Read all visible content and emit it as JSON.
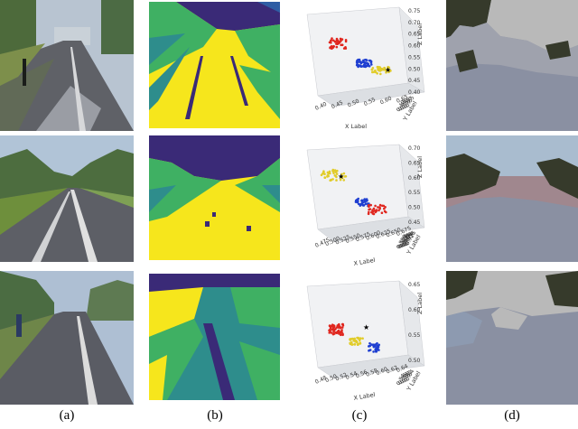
{
  "figure": {
    "captions": [
      "(a)",
      "(b)",
      "(c)",
      "(d)"
    ]
  },
  "colors": {
    "road_gray": "#5f6167",
    "sky": "#b6c3d2",
    "tree_green": "#3f6a30",
    "grass": "#6d8f3c",
    "cluster_yellow": "#f6e61c",
    "cluster_green": "#3fb063",
    "cluster_teal": "#2e8d8c",
    "cluster_navy": "#3a2a77",
    "cluster_blue": "#2f5da4",
    "seg_dark": "#363a2b",
    "seg_light": "#b9b9b9",
    "seg_road": "#8a90a2",
    "seg_sky": "#a9bccf",
    "seg_mauve": "#a0878e",
    "seg_bluegray": "#8d9ab0"
  },
  "scatter_plots": [
    {
      "x_label": "X Label",
      "y_label": "Y Label",
      "z_label": "Z Label",
      "x_ticks": [
        "0.40",
        "0.45",
        "0.50",
        "0.55",
        "0.60",
        "0.65"
      ],
      "y_ticks": [
        "0.40",
        "0.45",
        "0.50",
        "0.55",
        "0.60",
        "0.65"
      ],
      "z_ticks": [
        "0.40",
        "0.45",
        "0.50",
        "0.55",
        "0.60",
        "0.65",
        "0.70",
        "0.75"
      ]
    },
    {
      "x_label": "X Label",
      "y_label": "Y Label",
      "z_label": "Z Label",
      "x_ticks": [
        "0.475",
        "0.500",
        "0.525",
        "0.550",
        "0.575",
        "0.600",
        "0.625",
        "0.650",
        "0.675"
      ],
      "y_ticks": [
        "0.550",
        "0.575",
        "0.600",
        "0.625",
        "0.650",
        "0.675",
        "0.700",
        "0.725"
      ],
      "z_ticks": [
        "0.45",
        "0.50",
        "0.55",
        "0.60",
        "0.65",
        "0.70"
      ]
    },
    {
      "x_label": "X Label",
      "y_label": "Y Label",
      "z_label": "Z Label",
      "x_ticks": [
        "0.48",
        "0.50",
        "0.52",
        "0.54",
        "0.56",
        "0.58",
        "0.60",
        "0.62",
        "0.64"
      ],
      "y_ticks": [
        "0.54",
        "0.56",
        "0.58",
        "0.60",
        "0.62",
        "0.64"
      ],
      "z_ticks": [
        "0.50",
        "0.55",
        "0.60",
        "0.65"
      ]
    }
  ]
}
